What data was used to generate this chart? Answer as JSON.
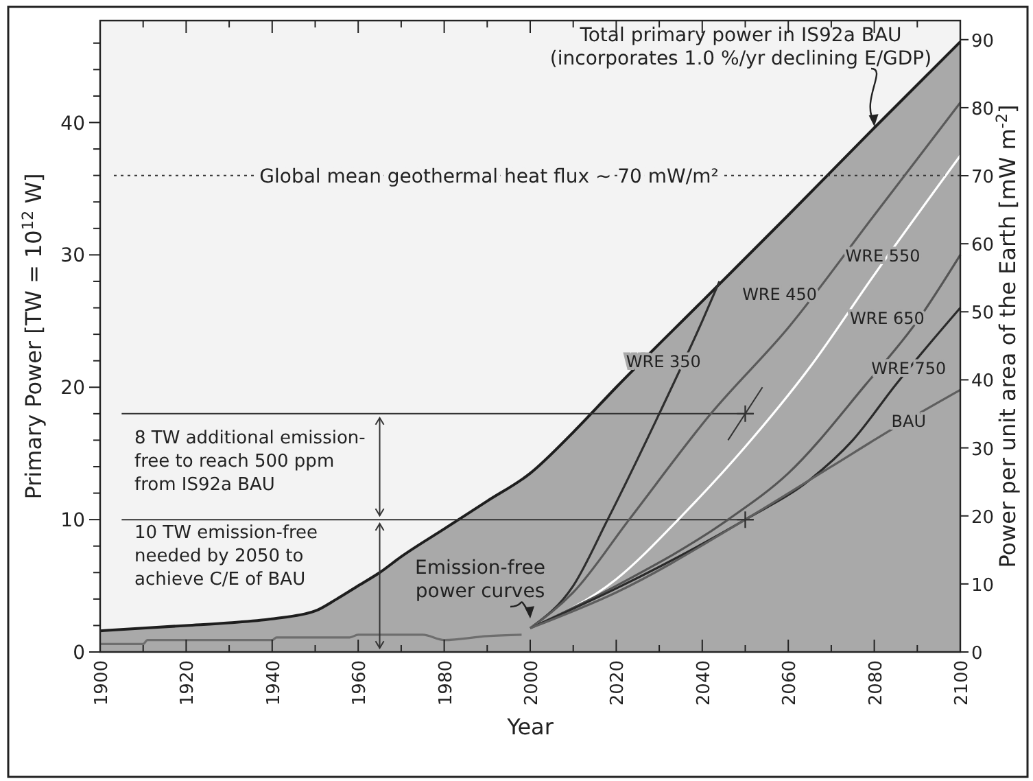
{
  "chart_data": {
    "type": "line",
    "xlabel": "Year",
    "ylabel": "Primary Power [TW = 10$^{12}$ W]",
    "y2label": "Power per unit area of the Earth [mW m$^{-2}$]",
    "xlim": [
      1900,
      2100
    ],
    "xticks": [
      1900,
      {
        "value": 1910,
        "label": null
      },
      1920,
      {
        "value": 1930,
        "label": null
      },
      1940,
      {
        "value": 1950,
        "label": null
      },
      1960,
      {
        "value": 1970,
        "label": null
      },
      1980,
      {
        "value": 1990,
        "label": null
      },
      2000,
      {
        "value": 2010,
        "label": null
      },
      2020,
      {
        "value": 2030,
        "label": null
      },
      2040,
      {
        "value": 2050,
        "label": null
      },
      2060,
      {
        "value": 2070,
        "label": null
      },
      2080,
      {
        "value": 2090,
        "label": null
      },
      2100
    ],
    "ylim": [
      0,
      47.7
    ],
    "yticks": [
      0,
      {
        "value": 2,
        "label": null
      },
      {
        "value": 4,
        "label": null
      },
      {
        "value": 6,
        "label": null
      },
      {
        "value": 8,
        "label": null
      },
      10,
      {
        "value": 12,
        "label": null
      },
      {
        "value": 14,
        "label": null
      },
      {
        "value": 16,
        "label": null
      },
      {
        "value": 18,
        "label": null
      },
      20,
      {
        "value": 22,
        "label": null
      },
      {
        "value": 24,
        "label": null
      },
      {
        "value": 26,
        "label": null
      },
      {
        "value": 28,
        "label": null
      },
      30,
      {
        "value": 32,
        "label": null
      },
      {
        "value": 34,
        "label": null
      },
      {
        "value": 36,
        "label": null
      },
      {
        "value": 38,
        "label": null
      },
      40,
      {
        "value": 42,
        "label": null
      },
      {
        "value": 44,
        "label": null
      },
      {
        "value": 46,
        "label": null
      }
    ],
    "y2lim": [
      0,
      92.8
    ],
    "y2ticks": [
      0,
      10,
      20,
      30,
      40,
      50,
      60,
      70,
      80,
      90
    ],
    "grid": false,
    "legend": false,
    "marker": "none",
    "line_style": "solid",
    "series": [
      {
        "type": "area",
        "color": "#1e1e1e",
        "x": [
          1900,
          1910,
          1920,
          1930,
          1940,
          1950,
          1955,
          1960,
          1965,
          1970,
          1980,
          1990,
          2000,
          2010,
          2020,
          2040,
          2060,
          2080,
          2100
        ],
        "values": [
          1.6,
          1.8,
          2.0,
          2.2,
          2.5,
          3.1,
          4.0,
          5.0,
          6.0,
          7.2,
          9.3,
          11.4,
          13.5,
          16.6,
          20.0,
          26.5,
          33.0,
          39.6,
          46.1
        ]
      },
      {
        "color": "#6e6e6e",
        "x": [
          1900,
          1910,
          1911,
          1940,
          1941,
          1958,
          1960,
          1975,
          1980,
          1990,
          1998
        ],
        "values": [
          0.6,
          0.6,
          0.9,
          0.9,
          1.1,
          1.1,
          1.3,
          1.3,
          0.9,
          1.2,
          1.3
        ]
      },
      {
        "name": "WRE 350",
        "color": "#2e2e2e",
        "x": [
          2000,
          2010,
          2018,
          2030,
          2040,
          2044
        ],
        "values": [
          1.8,
          5,
          10,
          18,
          25,
          28
        ]
      },
      {
        "name": "WRE 450",
        "color": "#5a5a5a",
        "x": [
          2000,
          2010,
          2023,
          2042,
          2060,
          2080,
          2100
        ],
        "values": [
          1.8,
          4.5,
          10,
          18,
          24.5,
          33,
          41.5
        ]
      },
      {
        "name": "WRE 550",
        "color": "#ffffff",
        "x": [
          2000,
          2020,
          2035,
          2050,
          2065,
          2080,
          2100
        ],
        "values": [
          1.8,
          5.5,
          10.2,
          15.5,
          21.5,
          28.5,
          37.5
        ]
      },
      {
        "name": "WRE 650",
        "color": "#555555",
        "x": [
          2000,
          2020,
          2046,
          2060,
          2078,
          2090,
          2100
        ],
        "values": [
          1.8,
          5,
          10,
          13.5,
          20.2,
          25,
          30
        ]
      },
      {
        "name": "WRE 750",
        "color": "#2a2a2a",
        "x": [
          2000,
          2020,
          2050,
          2065,
          2075,
          2085,
          2100
        ],
        "values": [
          1.8,
          4.8,
          10,
          13,
          16,
          20.2,
          26
        ]
      },
      {
        "name": "BAU",
        "color": "#5e5e5e",
        "x": [
          2000,
          2020,
          2050,
          2070,
          2085,
          2100
        ],
        "values": [
          1.8,
          4.5,
          10,
          14,
          17,
          19.8
        ]
      },
      {
        "type": "scatter",
        "marker": "cross",
        "color": "#333333",
        "x": [
          2050,
          2050
        ],
        "values": [
          18,
          10
        ]
      }
    ],
    "ref_lines": [
      {
        "axis": "y",
        "value": 36,
        "label": "Global mean geothermal heat flux ~ 70 mW/m²",
        "line_style": "dotted",
        "color": "#333333"
      },
      {
        "axis": "y",
        "value": 18,
        "color": "#333333",
        "line_style": "solid"
      },
      {
        "axis": "y",
        "value": 10,
        "color": "#333333",
        "line_style": "solid"
      }
    ],
    "annotations": [
      {
        "text": "Total primary power in IS92a BAU\n(incorporates 1.0 %/yr declining E/GDP)",
        "x": 2080,
        "y": 39.6
      },
      {
        "text": "Emission-free\npower curves",
        "x": 2000,
        "y": 1.8
      },
      {
        "text": "8 TW additional emission-\nfree to reach 500 ppm\nfrom IS92a BAU",
        "x": 1965,
        "y": 18
      },
      "10 TW emission-free\nneeded by 2050 to\nachieve C/E of BAU"
    ]
  }
}
